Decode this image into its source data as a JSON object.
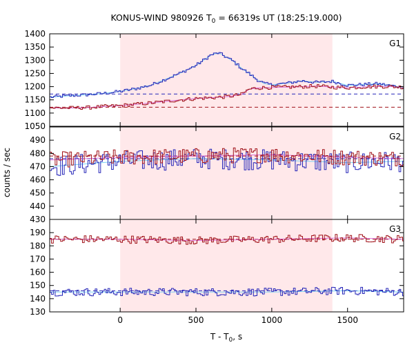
{
  "chart_data": {
    "type": "line",
    "title": "KONUS-WIND 980926 T",
    "title_sub": "0",
    "title_rest": " = 66319s UT (18:25:19.000)",
    "xlabel": "T - T",
    "xlabel_sub": "0",
    "xlabel_rest": ", s",
    "ylabel": "counts / sec",
    "xlim": [
      -465,
      1870
    ],
    "x_ticks": [
      0,
      500,
      1000,
      1500
    ],
    "highlight_interval": [
      0,
      1400
    ],
    "highlight_color": "#ffe8ea",
    "colors": {
      "blue": "#2424b8",
      "red": "#a01018",
      "cyan": "#5cc8f0",
      "magenta": "#d050d0"
    },
    "panels": [
      {
        "label": "G1",
        "ylim": [
          1050,
          1400
        ],
        "y_ticks": [
          1050,
          1100,
          1150,
          1200,
          1250,
          1300,
          1350,
          1400
        ],
        "bg_blue": 1172,
        "bg_red": 1122,
        "series": [
          {
            "name": "",
            "color": "blue",
            "x": [
              -465,
              -350,
              -200,
              -100,
              0,
              100,
              200,
              300,
              400,
              500,
              550,
              600,
              650,
              700,
              750,
              800,
              850,
              900,
              950,
              1000,
              1100,
              1200,
              1300,
              1400,
              1500,
              1600,
              1700,
              1800,
              1870
            ],
            "y": [
              1160,
              1165,
              1170,
              1175,
              1182,
              1192,
              1205,
              1228,
              1252,
              1280,
              1300,
              1320,
              1328,
              1312,
              1295,
              1270,
              1250,
              1228,
              1212,
              1207,
              1213,
              1222,
              1216,
              1220,
              1205,
              1208,
              1211,
              1203,
              1197
            ]
          },
          {
            "name": "",
            "color": "red",
            "x": [
              -465,
              -350,
              -200,
              -100,
              0,
              100,
              200,
              300,
              400,
              500,
              600,
              700,
              800,
              850,
              900,
              1000,
              1100,
              1200,
              1300,
              1400,
              1500,
              1600,
              1700,
              1800,
              1870
            ],
            "y": [
              1120,
              1119,
              1121,
              1125,
              1128,
              1133,
              1138,
              1144,
              1150,
              1155,
              1158,
              1162,
              1170,
              1190,
              1195,
              1197,
              1198,
              1200,
              1202,
              1198,
              1196,
              1199,
              1201,
              1200,
              1198
            ]
          }
        ],
        "noise_blue": 6,
        "noise_red": 7
      },
      {
        "label": "G2",
        "ylim": [
          430,
          500
        ],
        "y_ticks": [
          430,
          440,
          450,
          460,
          470,
          480,
          490
        ],
        "bg_blue": 476,
        "bg_red": 478,
        "series": [
          {
            "name": "",
            "color": "blue",
            "x": [
              -465,
              0,
              500,
              1000,
              1500,
              1870
            ],
            "y": [
              470,
              474,
              476,
              475,
              473,
              474
            ]
          },
          {
            "name": "",
            "color": "red",
            "x": [
              -465,
              0,
              500,
              1000,
              1500,
              1870
            ],
            "y": [
              475,
              477,
              478,
              479,
              477,
              476
            ]
          }
        ],
        "noise_blue": 8,
        "noise_red": 6
      },
      {
        "label": "G3",
        "ylim": [
          130,
          200
        ],
        "y_ticks": [
          130,
          140,
          150,
          160,
          170,
          180,
          190
        ],
        "bg_blue": 146,
        "bg_red": 185,
        "series": [
          {
            "name": "",
            "color": "blue",
            "x": [
              -465,
              0,
              500,
              1000,
              1500,
              1870
            ],
            "y": [
              145,
              145,
              145,
              145,
              146,
              145
            ]
          },
          {
            "name": "",
            "color": "red",
            "x": [
              -465,
              0,
              500,
              1000,
              1500,
              1870
            ],
            "y": [
              185,
              185,
              184,
              185,
              186,
              185
            ]
          }
        ],
        "noise_blue": 3,
        "noise_red": 3
      }
    ]
  }
}
